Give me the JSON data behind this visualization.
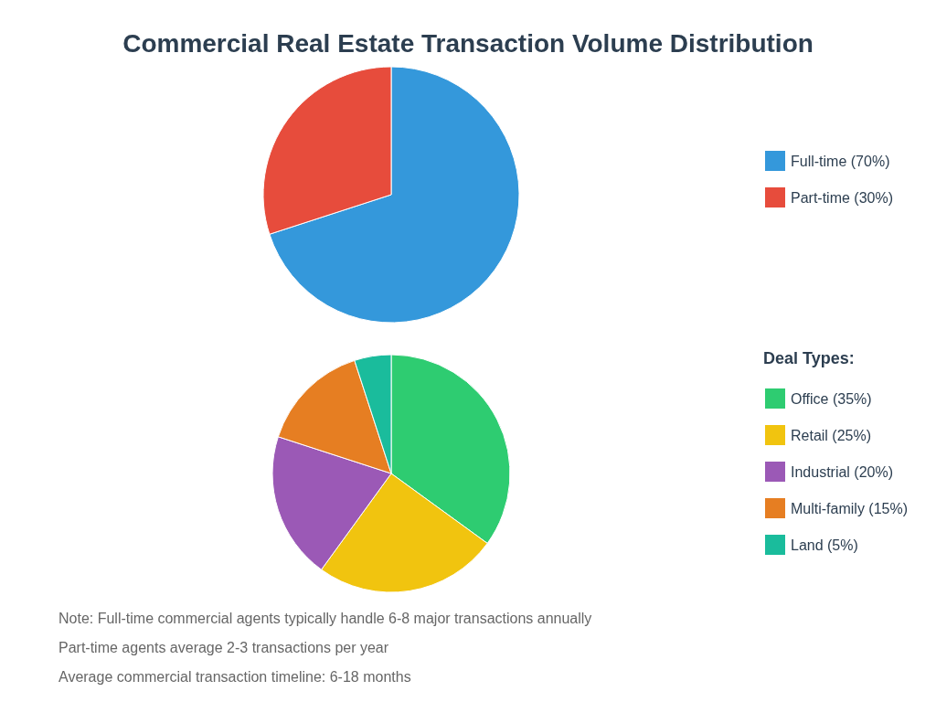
{
  "chart_data": [
    {
      "type": "pie",
      "title": "Commercial Real Estate Transaction Volume Distribution",
      "categories": [
        "Full-time (70%)",
        "Part-time (30%)"
      ],
      "values": [
        70,
        30
      ],
      "colors": [
        "#3498db",
        "#e74c3c"
      ],
      "legend": "right"
    },
    {
      "type": "pie",
      "legend_title": "Deal Types:",
      "categories": [
        "Office (35%)",
        "Retail (25%)",
        "Industrial (20%)",
        "Multi-family (15%)",
        "Land (5%)"
      ],
      "values": [
        35,
        25,
        20,
        15,
        5
      ],
      "colors": [
        "#2ecc71",
        "#f1c40f",
        "#9b59b6",
        "#e67e22",
        "#1abc9c"
      ],
      "legend": "right",
      "annotations": [
        "Note: Full-time commercial agents typically handle 6-8 major transactions annually",
        "Part-time agents average 2-3 transactions per year",
        "Average commercial transaction timeline: 6-18 months"
      ]
    }
  ]
}
